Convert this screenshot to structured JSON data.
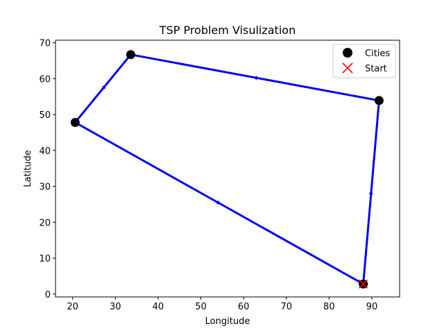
{
  "chart_data": {
    "type": "scatter",
    "title": "TSP Problem Visulization",
    "xlabel": "Longitude",
    "ylabel": "Latitude",
    "xlim": [
      16,
      96.5
    ],
    "ylim": [
      -0.8,
      70.7
    ],
    "xticks": [
      20,
      30,
      40,
      50,
      60,
      70,
      80,
      90
    ],
    "yticks": [
      0,
      10,
      20,
      30,
      40,
      50,
      60,
      70
    ],
    "grid": false,
    "legend_position": "top-right",
    "cities": [
      {
        "x": 88.0,
        "y": 2.8
      },
      {
        "x": 91.7,
        "y": 53.9
      },
      {
        "x": 33.6,
        "y": 66.7
      },
      {
        "x": 20.6,
        "y": 47.8
      }
    ],
    "route": [
      {
        "x": 88.0,
        "y": 2.8
      },
      {
        "x": 91.7,
        "y": 53.9
      },
      {
        "x": 33.6,
        "y": 66.7
      },
      {
        "x": 20.6,
        "y": 47.8
      },
      {
        "x": 88.0,
        "y": 2.8
      }
    ],
    "start": {
      "x": 88.0,
      "y": 2.8
    },
    "series": [
      {
        "name": "Cities",
        "color": "#000000",
        "marker": "circle"
      },
      {
        "name": "Start",
        "color": "#ff0000",
        "marker": "x"
      }
    ],
    "route_color": "#0000ff"
  }
}
